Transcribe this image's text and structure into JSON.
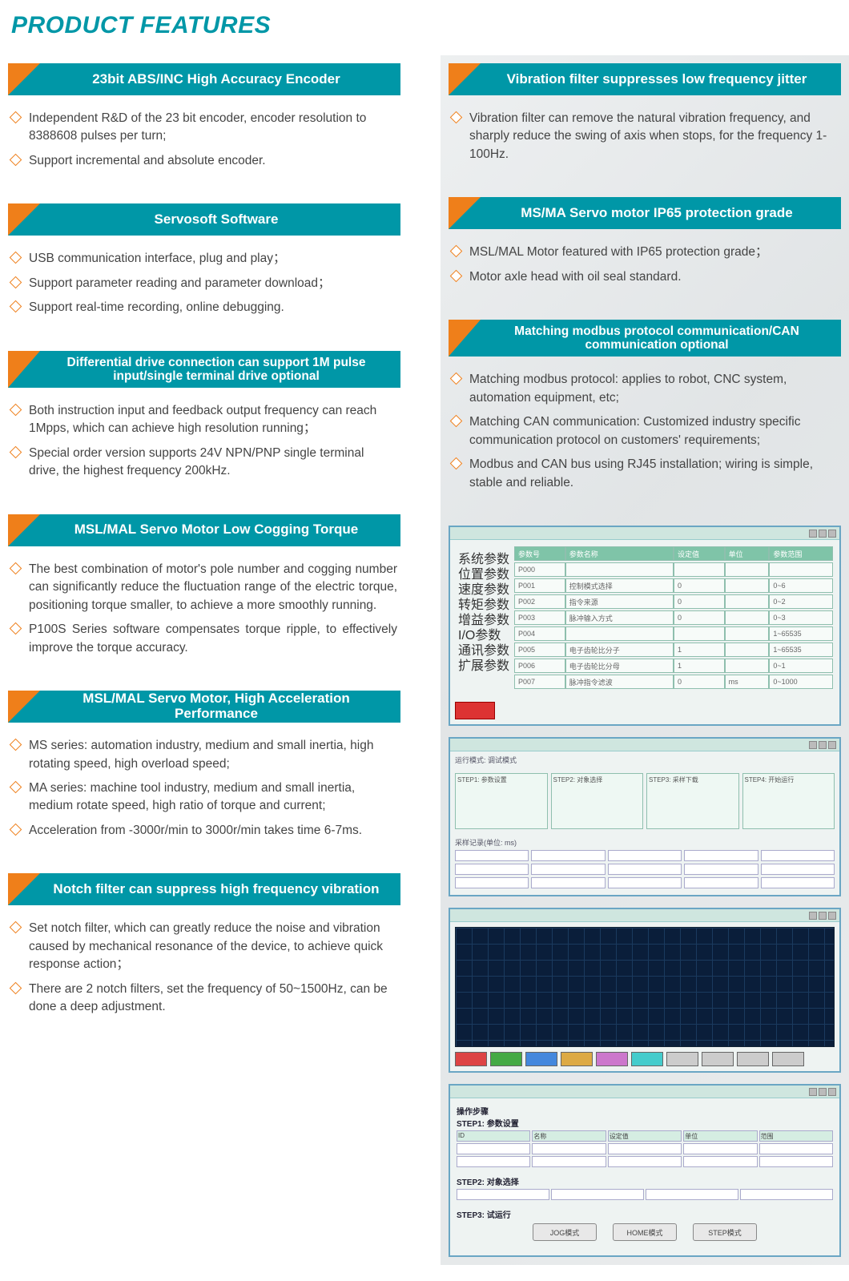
{
  "page_title": "PRODUCT FEATURES",
  "colors": {
    "accent_teal": "#0097a7",
    "accent_orange": "#ef7f1a",
    "text": "#444444",
    "bg": "#ffffff"
  },
  "left_features": [
    {
      "title": "23bit ABS/INC High Accuracy Encoder",
      "two_line": false,
      "bullets": [
        "Independent R&D of the 23 bit encoder, encoder resolution to 8388608 pulses per turn;",
        "Support incremental and absolute encoder."
      ]
    },
    {
      "title": "Servosoft Software",
      "two_line": false,
      "bullets": [
        "USB communication interface, plug and play；",
        "Support parameter reading and parameter download；",
        "Support real-time recording, online debugging."
      ]
    },
    {
      "title": "Differential drive connection can support 1M pulse input/single terminal drive optional",
      "two_line": true,
      "bullets": [
        "Both instruction input and feedback output frequency can reach 1Mpps, which can achieve high resolution running；",
        "Special order version supports 24V NPN/PNP single terminal drive, the highest frequency 200kHz."
      ]
    },
    {
      "title": "MSL/MAL Servo Motor Low Cogging Torque",
      "two_line": false,
      "bullets": [
        "The best combination of motor's pole number and cogging number can significantly reduce the fluctuation range of the electric torque, positioning torque smaller, to achieve a more smoothly running.",
        "P100S Series software compensates torque ripple, to effectively improve the torque accuracy."
      ],
      "justify": true
    },
    {
      "title": "MSL/MAL Servo Motor, High Acceleration Performance",
      "two_line": false,
      "bullets": [
        "MS series: automation industry, medium and small inertia, high rotating speed, high overload speed;",
        "MA series: machine tool industry, medium and small inertia, medium rotate speed, high ratio of torque and current;",
        "Acceleration from -3000r/min to 3000r/min takes time 6-7ms."
      ]
    },
    {
      "title": "Notch filter can suppress high frequency vibration",
      "two_line": false,
      "bullets": [
        "Set notch filter, which can greatly reduce the noise and vibration caused by mechanical resonance of the device, to achieve quick response action；",
        "There are 2 notch filters, set the frequency of 50~1500Hz, can be done a deep adjustment."
      ]
    }
  ],
  "right_features": [
    {
      "title": "Vibration filter suppresses low frequency jitter",
      "two_line": false,
      "bullets": [
        "Vibration filter can remove the natural vibration frequency, and sharply reduce the swing of axis when stops, for the frequency 1-100Hz."
      ]
    },
    {
      "title": "MS/MA Servo motor IP65 protection grade",
      "two_line": false,
      "bullets": [
        "MSL/MAL Motor featured with IP65 protection grade；",
        "Motor axle head with oil seal standard."
      ]
    },
    {
      "title": "Matching modbus protocol communication/CAN communication optional",
      "two_line": true,
      "bullets": [
        "Matching modbus protocol: applies to robot, CNC system, automation equipment, etc;",
        "Matching CAN communication: Customized industry specific communication protocol on customers' requirements;",
        "Modbus and CAN bus using RJ45 installation; wiring is simple, stable and reliable."
      ]
    }
  ],
  "screenshots": {
    "panel1": {
      "side_items": [
        "系统参数",
        "位置参数",
        "速度参数",
        "转矩参数",
        "增益参数",
        "I/O参数",
        "通讯参数",
        "扩展参数"
      ],
      "headers": [
        "参数号",
        "参数名称",
        "设定值",
        "单位",
        "参数范围"
      ],
      "rows": [
        [
          "P000",
          "",
          "",
          "",
          ""
        ],
        [
          "P001",
          "控制模式选择",
          "0",
          "",
          "0~6"
        ],
        [
          "P002",
          "指令来源",
          "0",
          "",
          "0~2"
        ],
        [
          "P003",
          "脉冲输入方式",
          "0",
          "",
          "0~3"
        ],
        [
          "P004",
          "",
          "",
          "",
          "1~65535"
        ],
        [
          "P005",
          "电子齿轮比分子",
          "1",
          "",
          "1~65535"
        ],
        [
          "P006",
          "电子齿轮比分母",
          "1",
          "",
          "0~1"
        ],
        [
          "P007",
          "脉冲指令滤波",
          "0",
          "ms",
          "0~1000"
        ]
      ]
    },
    "panel2": {
      "top_label": "运行模式: 调试模式",
      "boxes": [
        "STEP1: 参数设置",
        "STEP2: 对象选择",
        "STEP3: 采样下载",
        "STEP4: 开始运行"
      ],
      "bottom_label": "采样记录(单位: ms)"
    },
    "panel3": {
      "button_colors": [
        "bc1",
        "bc2",
        "bc3",
        "bc4",
        "bc5",
        "bc6",
        "bc7",
        "bc7",
        "bc7",
        "bc7"
      ]
    },
    "panel4": {
      "title": "操作步骤",
      "headers": [
        "ID",
        "名称",
        "设定值",
        "单位",
        "范围"
      ],
      "step1": "STEP1: 参数设置",
      "step2": "STEP2: 对象选择",
      "step3": "STEP3: 试运行",
      "pills": [
        "JOG模式",
        "HOME模式",
        "STEP模式"
      ]
    }
  }
}
